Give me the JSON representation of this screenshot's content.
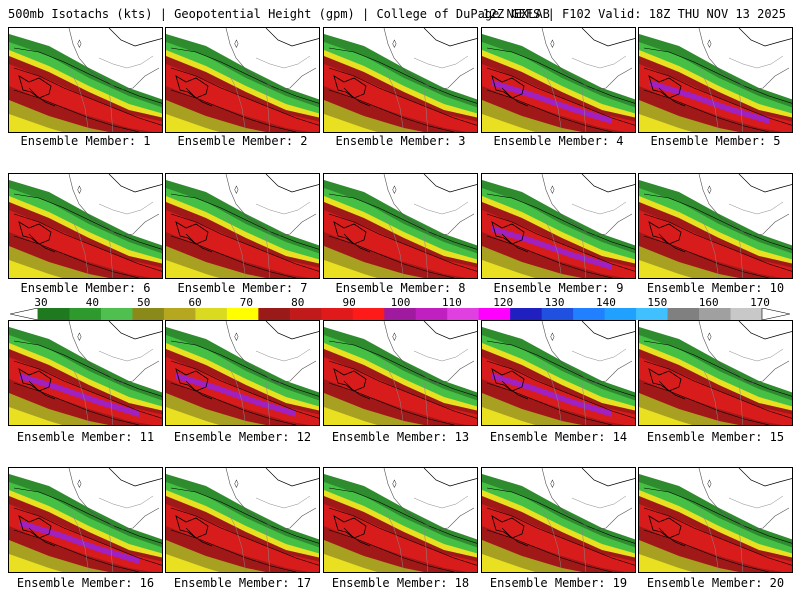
{
  "header": {
    "left": "500mb Isotachs (kts) | Geopotential Height (gpm) | College of DuPage NEXLAB",
    "right": "12Z GEFS | F102 Valid: 18Z THU NOV 13 2025"
  },
  "members": [
    {
      "label": "Ensemble Member: 1"
    },
    {
      "label": "Ensemble Member: 2"
    },
    {
      "label": "Ensemble Member: 3"
    },
    {
      "label": "Ensemble Member: 4"
    },
    {
      "label": "Ensemble Member: 5"
    },
    {
      "label": "Ensemble Member: 6"
    },
    {
      "label": "Ensemble Member: 7"
    },
    {
      "label": "Ensemble Member: 8"
    },
    {
      "label": "Ensemble Member: 9"
    },
    {
      "label": "Ensemble Member: 10"
    },
    {
      "label": "Ensemble Member: 11"
    },
    {
      "label": "Ensemble Member: 12"
    },
    {
      "label": "Ensemble Member: 13"
    },
    {
      "label": "Ensemble Member: 14"
    },
    {
      "label": "Ensemble Member: 15"
    },
    {
      "label": "Ensemble Member: 16"
    },
    {
      "label": "Ensemble Member: 17"
    },
    {
      "label": "Ensemble Member: 18"
    },
    {
      "label": "Ensemble Member: 19"
    },
    {
      "label": "Ensemble Member: 20"
    }
  ],
  "colorbar": {
    "labels": [
      "30",
      "40",
      "50",
      "60",
      "70",
      "80",
      "90",
      "100",
      "110",
      "120",
      "130",
      "140",
      "150",
      "160",
      "170"
    ],
    "colors": [
      "#1f7a1f",
      "#2e9a2e",
      "#4fc04f",
      "#8a8a1a",
      "#b5a820",
      "#dada20",
      "#ffff00",
      "#9a1a1a",
      "#c01a1a",
      "#e01a1a",
      "#ff1a1a",
      "#a01aa0",
      "#c020c0",
      "#e040e0",
      "#ff00ff",
      "#2020c0",
      "#2050e0",
      "#2080ff",
      "#20a0ff",
      "#40c0ff",
      "#808080",
      "#a0a0a0",
      "#c8c8c8"
    ]
  },
  "palette": {
    "dark_green": "#2e8b2e",
    "green": "#45c045",
    "olive": "#a8a020",
    "yellow": "#e8e020",
    "dark_red": "#a01818",
    "red": "#d81c1c",
    "purple": "#a020c0"
  }
}
